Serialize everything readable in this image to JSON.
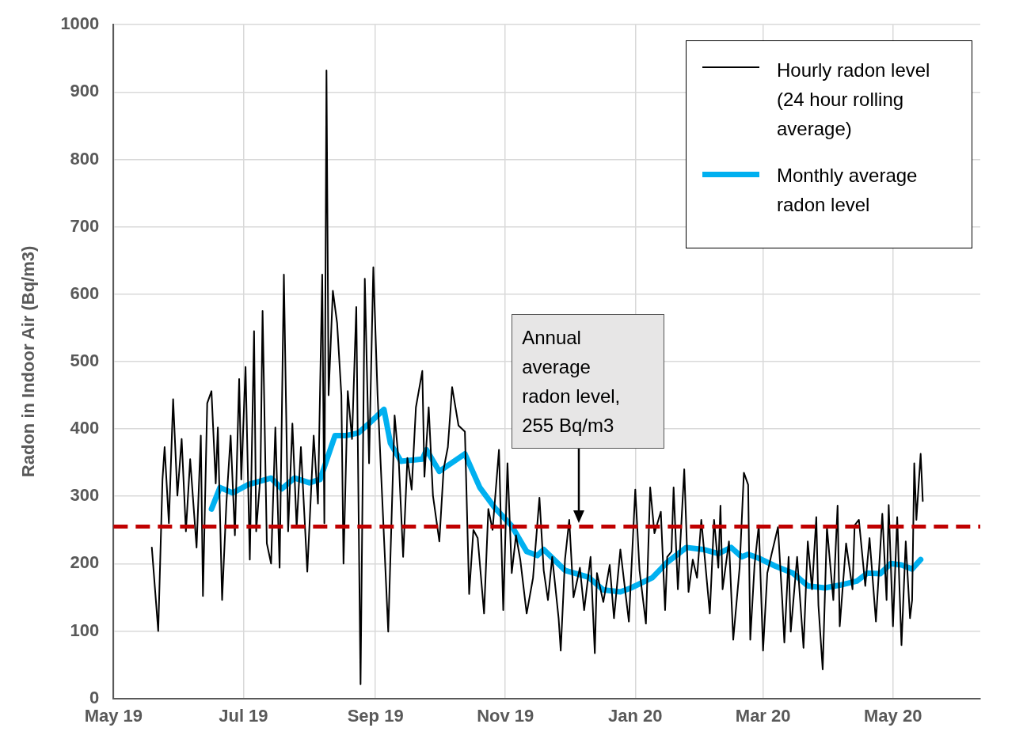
{
  "chart_data": {
    "type": "line",
    "ylabel": "Radon in Indoor Air (Bq/m3)",
    "xlim": [
      "2019-05-01",
      "2020-06-11"
    ],
    "xticks": [
      {
        "value": "2019-05-01",
        "label": "May 19"
      },
      {
        "value": "2019-07-01",
        "label": "Jul 19"
      },
      {
        "value": "2019-09-01",
        "label": "Sep 19"
      },
      {
        "value": "2019-11-01",
        "label": "Nov 19"
      },
      {
        "value": "2020-01-01",
        "label": "Jan 20"
      },
      {
        "value": "2020-03-01",
        "label": "Mar 20"
      },
      {
        "value": "2020-05-01",
        "label": "May 20"
      }
    ],
    "ylim": [
      0,
      1000
    ],
    "yticks": [
      0,
      100,
      200,
      300,
      400,
      500,
      600,
      700,
      800,
      900,
      1000
    ],
    "grid": true,
    "legend": "top right",
    "line_style": "solid",
    "ref_lines": [
      {
        "axis": "y",
        "value": 255,
        "color": "#c00000",
        "line_style": "dashed"
      }
    ],
    "annotations": [
      "Annual average radon level, 255 Bq/m3"
    ],
    "series": [
      {
        "name": "Hourly radon level (24 hour rolling average)",
        "color": "#000000",
        "x": [
          "2019-05-19",
          "2019-05-22",
          "2019-05-24",
          "2019-05-25",
          "2019-05-27",
          "2019-05-29",
          "2019-05-31",
          "2019-06-02",
          "2019-06-04",
          "2019-06-06",
          "2019-06-09",
          "2019-06-11",
          "2019-06-12",
          "2019-06-14",
          "2019-06-16",
          "2019-06-18",
          "2019-06-19",
          "2019-06-21",
          "2019-06-23",
          "2019-06-25",
          "2019-06-27",
          "2019-06-29",
          "2019-06-30",
          "2019-07-02",
          "2019-07-04",
          "2019-07-06",
          "2019-07-07",
          "2019-07-09",
          "2019-07-10",
          "2019-07-12",
          "2019-07-14",
          "2019-07-16",
          "2019-07-18",
          "2019-07-20",
          "2019-07-22",
          "2019-07-24",
          "2019-07-26",
          "2019-07-28",
          "2019-07-31",
          "2019-08-03",
          "2019-08-05",
          "2019-08-07",
          "2019-08-08",
          "2019-08-09",
          "2019-08-10",
          "2019-08-12",
          "2019-08-14",
          "2019-08-16",
          "2019-08-17",
          "2019-08-19",
          "2019-08-21",
          "2019-08-23",
          "2019-08-25",
          "2019-08-27",
          "2019-08-29",
          "2019-08-31",
          "2019-09-02",
          "2019-09-07",
          "2019-09-10",
          "2019-09-12",
          "2019-09-14",
          "2019-09-16",
          "2019-09-18",
          "2019-09-20",
          "2019-09-23",
          "2019-09-24",
          "2019-09-26",
          "2019-09-28",
          "2019-10-01",
          "2019-10-03",
          "2019-10-05",
          "2019-10-07",
          "2019-10-10",
          "2019-10-13",
          "2019-10-15",
          "2019-10-17",
          "2019-10-19",
          "2019-10-22",
          "2019-10-24",
          "2019-10-26",
          "2019-10-29",
          "2019-10-31",
          "2019-11-02",
          "2019-11-04",
          "2019-11-06",
          "2019-11-08",
          "2019-11-11",
          "2019-11-14",
          "2019-11-17",
          "2019-11-19",
          "2019-11-21",
          "2019-11-23",
          "2019-11-26",
          "2019-11-27",
          "2019-11-29",
          "2019-12-01",
          "2019-12-03",
          "2019-12-06",
          "2019-12-08",
          "2019-12-11",
          "2019-12-13",
          "2019-12-14",
          "2019-12-17",
          "2019-12-20",
          "2019-12-22",
          "2019-12-25",
          "2019-12-27",
          "2019-12-29",
          "2020-01-01",
          "2020-01-03",
          "2020-01-06",
          "2020-01-08",
          "2020-01-10",
          "2020-01-13",
          "2020-01-15",
          "2020-01-16",
          "2020-01-18",
          "2020-01-19",
          "2020-01-21",
          "2020-01-24",
          "2020-01-26",
          "2020-01-28",
          "2020-01-30",
          "2020-02-01",
          "2020-02-05",
          "2020-02-07",
          "2020-02-09",
          "2020-02-10",
          "2020-02-11",
          "2020-02-14",
          "2020-02-16",
          "2020-02-19",
          "2020-02-21",
          "2020-02-23",
          "2020-02-24",
          "2020-02-26",
          "2020-02-28",
          "2020-03-01",
          "2020-03-03",
          "2020-03-05",
          "2020-03-08",
          "2020-03-10",
          "2020-03-11",
          "2020-03-13",
          "2020-03-14",
          "2020-03-17",
          "2020-03-20",
          "2020-03-22",
          "2020-03-24",
          "2020-03-26",
          "2020-03-27",
          "2020-03-29",
          "2020-03-31",
          "2020-04-03",
          "2020-04-05",
          "2020-04-06",
          "2020-04-09",
          "2020-04-12",
          "2020-04-13",
          "2020-04-15",
          "2020-04-18",
          "2020-04-20",
          "2020-04-23",
          "2020-04-26",
          "2020-04-28",
          "2020-04-29",
          "2020-05-01",
          "2020-05-03",
          "2020-05-04",
          "2020-05-05",
          "2020-05-07",
          "2020-05-09",
          "2020-05-10",
          "2020-05-11",
          "2020-05-12",
          "2020-05-14",
          "2020-05-15"
        ],
        "values": [
          224,
          100,
          325,
          373,
          260,
          444,
          301,
          385,
          248,
          355,
          224,
          390,
          152,
          438,
          456,
          319,
          402,
          146,
          289,
          390,
          242,
          474,
          325,
          492,
          206,
          545,
          248,
          331,
          575,
          230,
          200,
          402,
          194,
          629,
          248,
          408,
          254,
          373,
          188,
          390,
          289,
          629,
          260,
          932,
          450,
          605,
          557,
          450,
          200,
          456,
          385,
          581,
          21,
          623,
          349,
          640,
          450,
          99,
          420,
          349,
          210,
          357,
          310,
          432,
          486,
          329,
          432,
          301,
          233,
          340,
          373,
          462,
          405,
          396,
          155,
          250,
          238,
          126,
          281,
          250,
          369,
          131,
          349,
          186,
          242,
          206,
          126,
          179,
          298,
          190,
          146,
          210,
          119,
          71,
          206,
          265,
          150,
          194,
          131,
          210,
          67,
          186,
          143,
          198,
          119,
          221,
          167,
          114,
          310,
          190,
          111,
          313,
          245,
          277,
          131,
          210,
          218,
          313,
          162,
          340,
          158,
          206,
          179,
          265,
          126,
          265,
          194,
          286,
          162,
          233,
          87,
          194,
          335,
          317,
          87,
          198,
          257,
          71,
          186,
          214,
          254,
          146,
          83,
          210,
          99,
          210,
          75,
          233,
          162,
          269,
          138,
          43,
          254,
          146,
          286,
          107,
          230,
          162,
          257,
          265,
          167,
          238,
          114,
          274,
          146,
          287,
          107,
          269,
          170,
          79,
          233,
          119,
          146,
          349,
          265,
          363,
          293
        ]
      },
      {
        "name": "Monthly average radon level",
        "color": "#00b0f0",
        "x": [
          "2019-06-16",
          "2019-06-20",
          "2019-06-26",
          "2019-07-03",
          "2019-07-14",
          "2019-07-19",
          "2019-07-25",
          "2019-08-01",
          "2019-08-06",
          "2019-08-13",
          "2019-08-18",
          "2019-08-24",
          "2019-08-29",
          "2019-09-05",
          "2019-09-08",
          "2019-09-13",
          "2019-09-23",
          "2019-09-25",
          "2019-10-01",
          "2019-10-13",
          "2019-10-20",
          "2019-10-27",
          "2019-11-04",
          "2019-11-11",
          "2019-11-16",
          "2019-11-19",
          "2019-11-29",
          "2019-12-10",
          "2019-12-17",
          "2019-12-25",
          "2019-12-30",
          "2020-01-09",
          "2020-01-16",
          "2020-01-25",
          "2020-02-02",
          "2020-02-09",
          "2020-02-15",
          "2020-02-20",
          "2020-02-23",
          "2020-02-28",
          "2020-03-07",
          "2020-03-15",
          "2020-03-22",
          "2020-03-30",
          "2020-04-06",
          "2020-04-14",
          "2020-04-19",
          "2020-04-25",
          "2020-04-30",
          "2020-05-05",
          "2020-05-10",
          "2020-05-14"
        ],
        "values": [
          281,
          313,
          305,
          317,
          327,
          311,
          327,
          320,
          325,
          390,
          390,
          394,
          408,
          429,
          379,
          352,
          355,
          369,
          337,
          363,
          313,
          283,
          256,
          218,
          212,
          221,
          190,
          180,
          161,
          158,
          164,
          179,
          202,
          224,
          221,
          215,
          224,
          210,
          214,
          208,
          196,
          186,
          167,
          164,
          168,
          174,
          186,
          185,
          200,
          198,
          192,
          206
        ]
      }
    ]
  }
}
